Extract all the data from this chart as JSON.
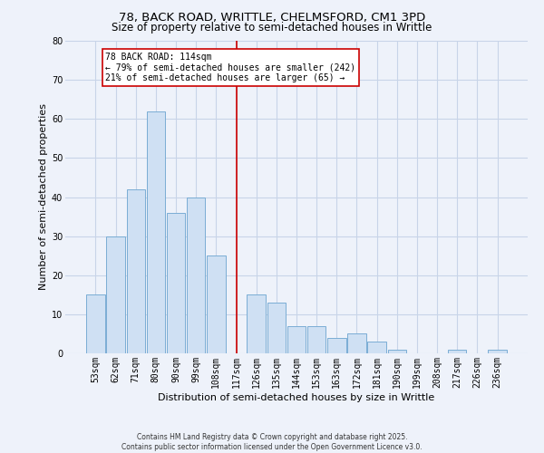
{
  "title": "78, BACK ROAD, WRITTLE, CHELMSFORD, CM1 3PD",
  "subtitle": "Size of property relative to semi-detached houses in Writtle",
  "xlabel": "Distribution of semi-detached houses by size in Writtle",
  "ylabel": "Number of semi-detached properties",
  "bar_labels": [
    "53sqm",
    "62sqm",
    "71sqm",
    "80sqm",
    "90sqm",
    "99sqm",
    "108sqm",
    "117sqm",
    "126sqm",
    "135sqm",
    "144sqm",
    "153sqm",
    "163sqm",
    "172sqm",
    "181sqm",
    "190sqm",
    "199sqm",
    "208sqm",
    "217sqm",
    "226sqm",
    "236sqm"
  ],
  "bar_values": [
    15,
    30,
    42,
    62,
    36,
    40,
    25,
    0,
    15,
    13,
    7,
    7,
    4,
    5,
    3,
    1,
    0,
    0,
    1,
    0,
    1
  ],
  "bar_color": "#cfe0f3",
  "bar_edge_color": "#7aadd4",
  "vline_x_index": 7,
  "vline_color": "#cc0000",
  "annotation_title": "78 BACK ROAD: 114sqm",
  "annotation_line1": "← 79% of semi-detached houses are smaller (242)",
  "annotation_line2": "21% of semi-detached houses are larger (65) →",
  "annotation_box_color": "#ffffff",
  "annotation_box_edge": "#cc0000",
  "ylim": [
    0,
    80
  ],
  "yticks": [
    0,
    10,
    20,
    30,
    40,
    50,
    60,
    70,
    80
  ],
  "footer_line1": "Contains HM Land Registry data © Crown copyright and database right 2025.",
  "footer_line2": "Contains public sector information licensed under the Open Government Licence v3.0.",
  "background_color": "#eef2fa",
  "grid_color": "#c8d4e8",
  "title_fontsize": 9.5,
  "subtitle_fontsize": 8.5,
  "axis_label_fontsize": 8,
  "tick_fontsize": 7,
  "annotation_fontsize": 7,
  "footer_fontsize": 5.5
}
